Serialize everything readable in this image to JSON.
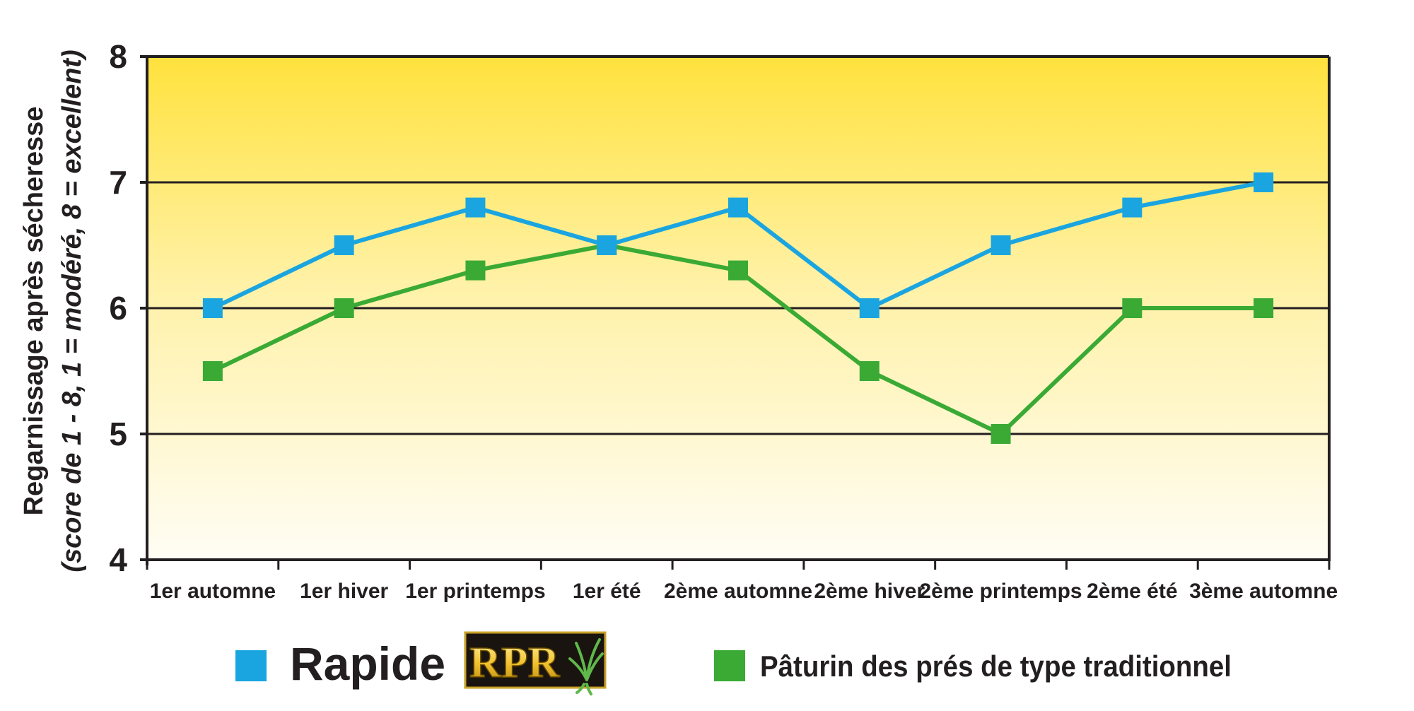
{
  "chart_data": {
    "type": "line",
    "title": "",
    "ylabel": "Regarnissage après sécheresse",
    "ylabel2": "(score de 1 - 8, 1 = modéré, 8 = excellent)",
    "xlabel": "",
    "ylim": [
      4,
      8
    ],
    "yticks": [
      "4",
      "5",
      "6",
      "7",
      "8"
    ],
    "grid": true,
    "categories": [
      "1er automne",
      "1er hiver",
      "1er printemps",
      "1er été",
      "2ème automne",
      "2ème hiver",
      "2ème printemps",
      "2ème été",
      "3ème automne"
    ],
    "series": [
      {
        "name": "Rapide",
        "color": "#1ba5e0",
        "values": [
          6.0,
          6.5,
          6.8,
          6.5,
          6.8,
          6.0,
          6.5,
          6.8,
          7.0
        ]
      },
      {
        "name": "Pâturin des prés de type traditionnel",
        "color": "#3aaa35",
        "values": [
          5.5,
          6.0,
          6.3,
          6.5,
          6.3,
          5.5,
          5.0,
          6.0,
          6.0
        ]
      }
    ],
    "legend": {
      "placement": "bottom",
      "logo_text": "RPR"
    },
    "background_gradient": [
      "#ffe23d",
      "#fffdf5"
    ]
  }
}
